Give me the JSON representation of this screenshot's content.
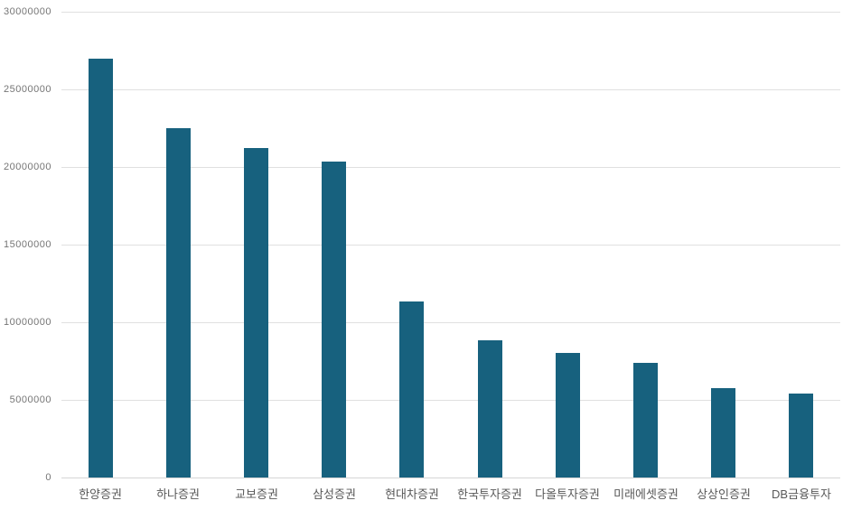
{
  "chart_data": {
    "type": "bar",
    "title": "",
    "xlabel": "",
    "ylabel": "",
    "categories": [
      "한양증권",
      "하나증권",
      "교보증권",
      "삼성증권",
      "현대차증권",
      "한국투자증권",
      "다올투자증권",
      "미래에셋증권",
      "상상인증권",
      "DB금융투자"
    ],
    "values": [
      26950000,
      22500000,
      21200000,
      20350000,
      11350000,
      8850000,
      8050000,
      7400000,
      5750000,
      5400000
    ],
    "ylim": [
      0,
      30000000
    ],
    "yticks": [
      0,
      5000000,
      10000000,
      15000000,
      20000000,
      25000000,
      30000000
    ],
    "ytick_labels": [
      "0",
      "5000000",
      "10000000",
      "15000000",
      "20000000",
      "25000000",
      "30000000"
    ],
    "grid": "horizontal",
    "legend": "none",
    "colors": {
      "bar": "#17617e",
      "gridline": "#e0e0e0",
      "ytick_text": "#757575",
      "xtick_text": "#585858",
      "background": "#ffffff"
    }
  }
}
